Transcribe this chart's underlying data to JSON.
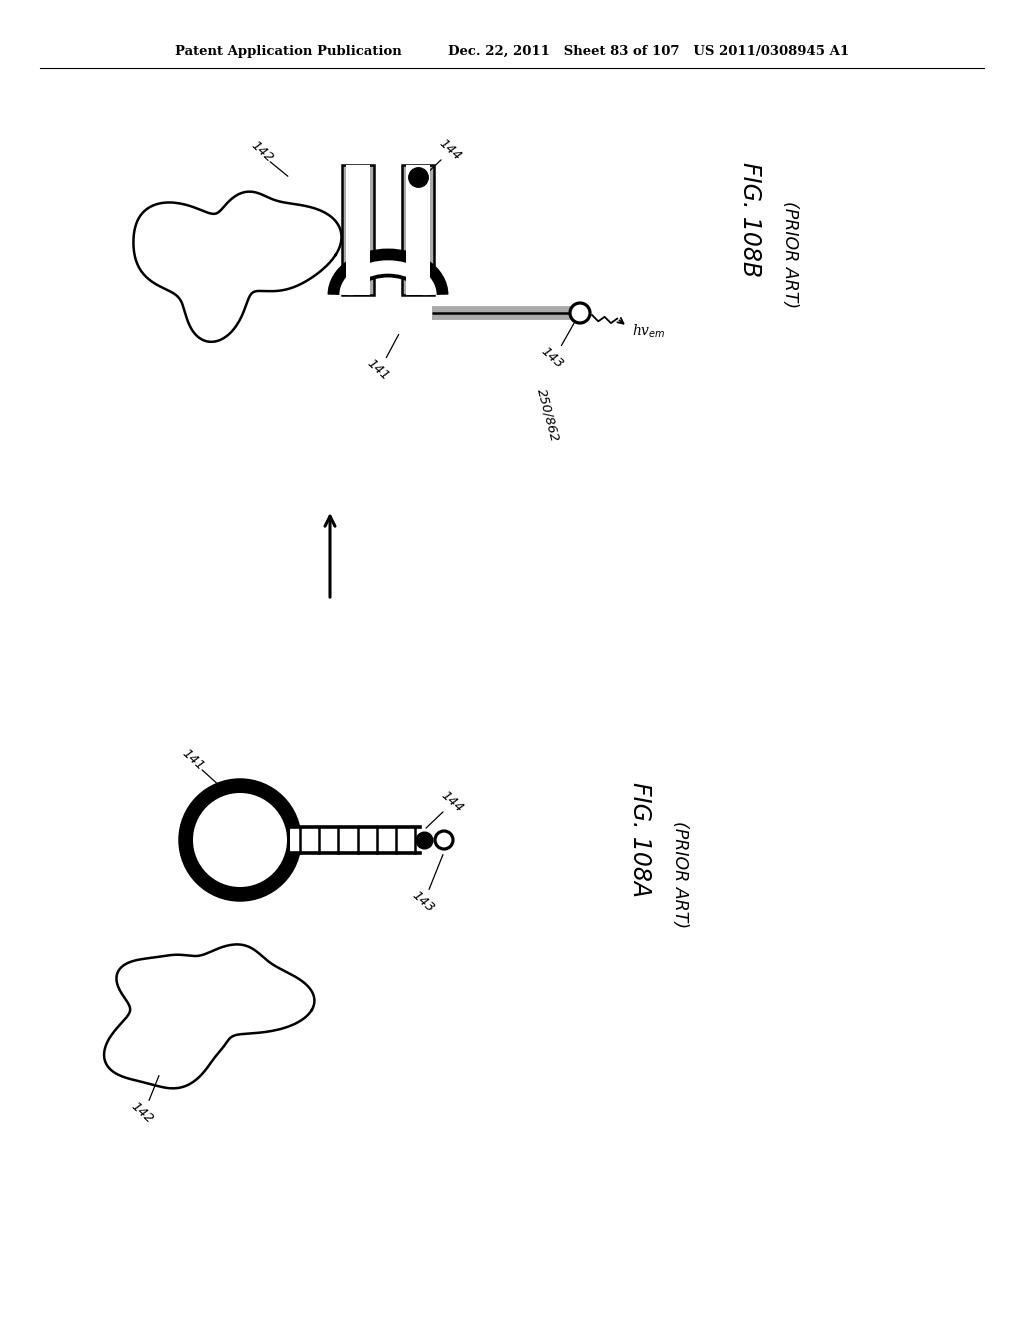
{
  "bg_color": "#ffffff",
  "header_text": "Patent Application Publication",
  "header_date": "Dec. 22, 2011",
  "header_sheet": "Sheet 83 of 107",
  "header_patent": "US 2011/0308945 A1",
  "line_color": "#000000",
  "gray_color": "#aaaaaa",
  "light_gray": "#cccccc"
}
